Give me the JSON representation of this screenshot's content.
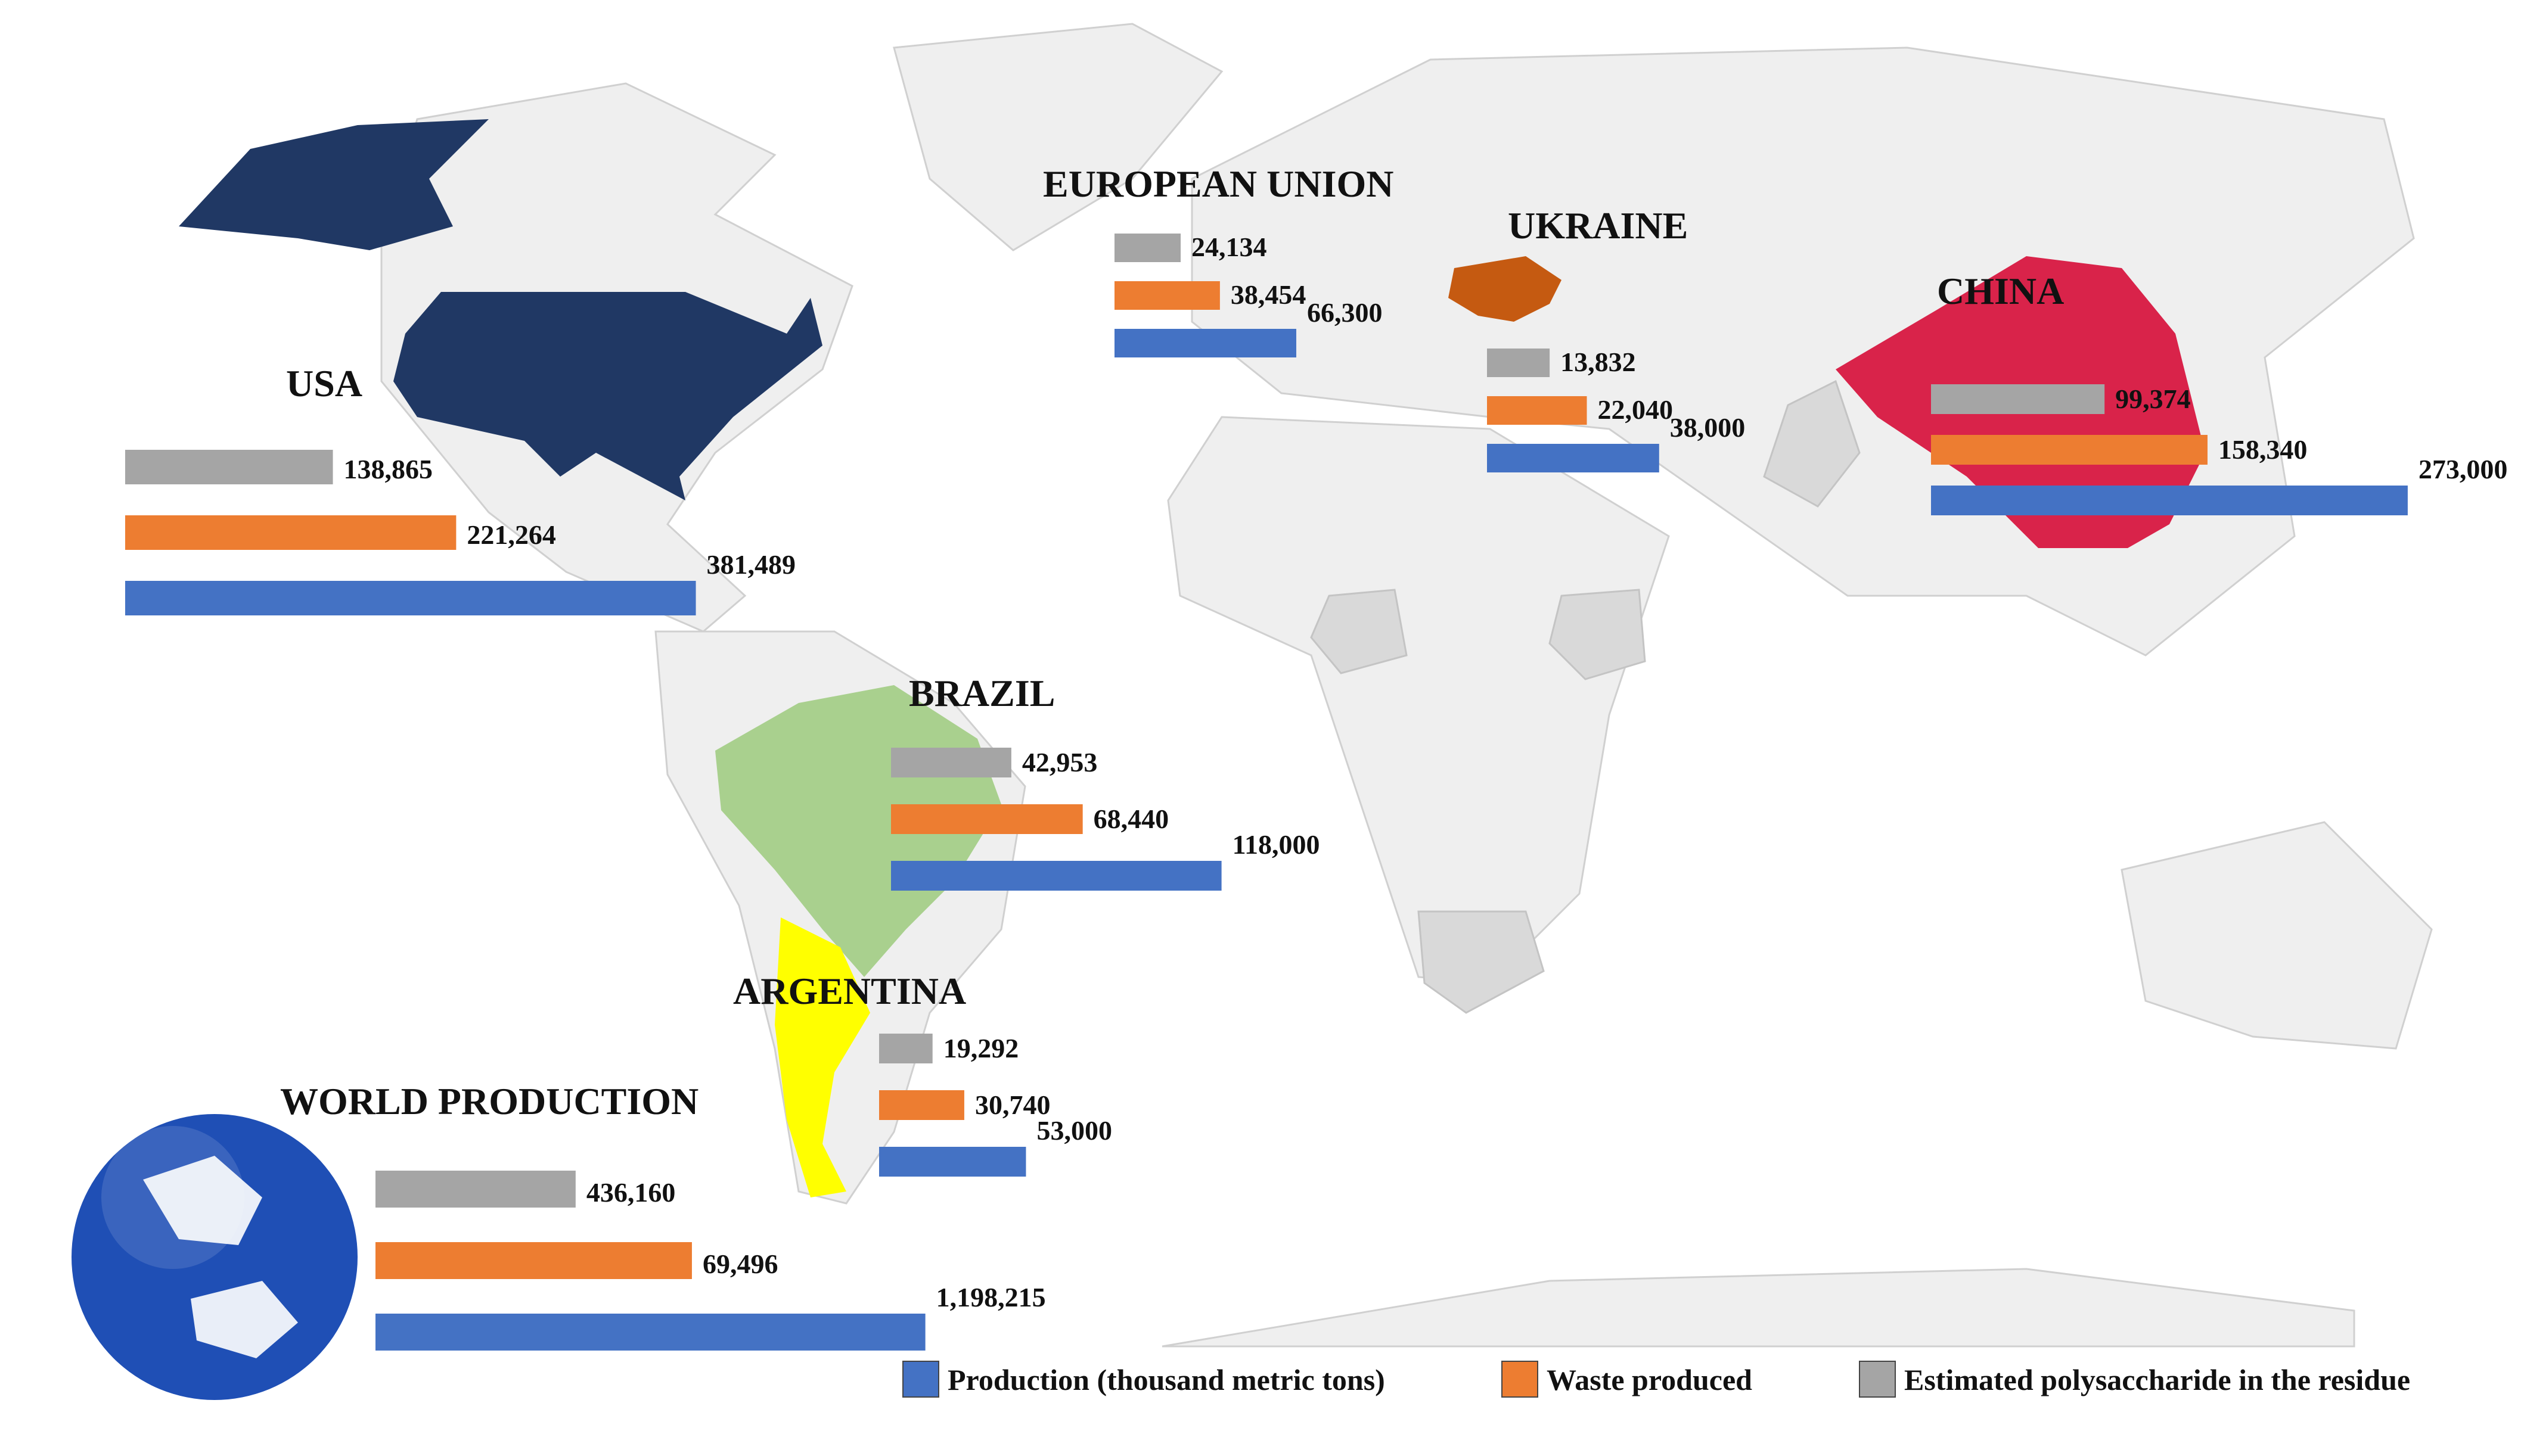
{
  "chart_data": {
    "type": "bar",
    "series": [
      {
        "name": "Production (thousand metric tons)",
        "color": "#4472c4"
      },
      {
        "name": "Waste produced",
        "color": "#ed7d31"
      },
      {
        "name": "Estimated polysaccharide in the residue",
        "color": "#a5a5a5"
      }
    ],
    "groups": [
      {
        "name": "USA",
        "production": 381489,
        "production_label": "381,489",
        "waste": 221264,
        "waste_label": "221,264",
        "polysaccharide": 138865,
        "polysaccharide_label": "138,865"
      },
      {
        "name": "EUROPEAN UNION",
        "production": 66300,
        "production_label": "66,300",
        "waste": 38454,
        "waste_label": "38,454",
        "polysaccharide": 24134,
        "polysaccharide_label": "24,134"
      },
      {
        "name": "UKRAINE",
        "production": 38000,
        "production_label": "38,000",
        "waste": 22040,
        "waste_label": "22,040",
        "polysaccharide": 13832,
        "polysaccharide_label": "13,832"
      },
      {
        "name": "CHINA",
        "production": 273000,
        "production_label": "273,000",
        "waste": 158340,
        "waste_label": "158,340",
        "polysaccharide": 99374,
        "polysaccharide_label": "99,374"
      },
      {
        "name": "BRAZIL",
        "production": 118000,
        "production_label": "118,000",
        "waste": 68440,
        "waste_label": "68,440",
        "polysaccharide": 42953,
        "polysaccharide_label": "42,953"
      },
      {
        "name": "ARGENTINA",
        "production": 53000,
        "production_label": "53,000",
        "waste": 30740,
        "waste_label": "30,740",
        "polysaccharide": 19292,
        "polysaccharide_label": "19,292"
      },
      {
        "name": "WORLD PRODUCTION",
        "production": 1198215,
        "production_label": "1,198,215",
        "waste": 69496,
        "waste_label": "69,496",
        "polysaccharide": 436160,
        "polysaccharide_label": "436,160"
      }
    ],
    "legend_position": "bottom-right"
  },
  "colors": {
    "usa": "#203864",
    "ukraine": "#c55a11",
    "china": "#d9234a",
    "brazil": "#a9d08e",
    "argentina": "#ffff00",
    "land": "#efefef",
    "highlight": "#d9d9d9",
    "globe": "#1f4fb5"
  }
}
